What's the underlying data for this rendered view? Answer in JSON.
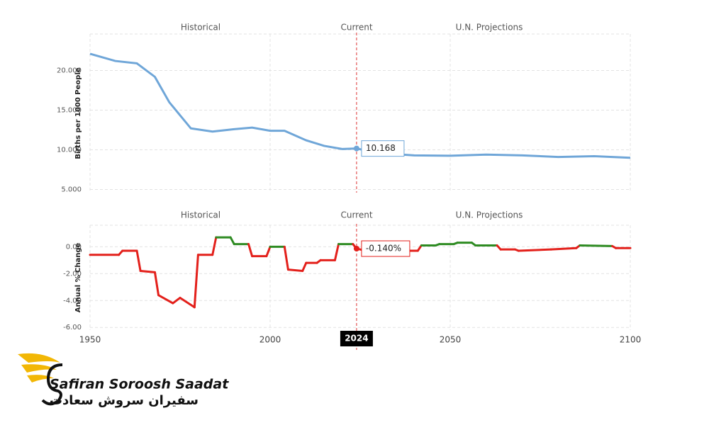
{
  "chart_data": [
    {
      "type": "line",
      "y_label": "Births per 1000 People",
      "sections": [
        "Historical",
        "Current",
        "U.N. Projections"
      ],
      "xlim": [
        1950,
        2100
      ],
      "ylim": [
        4.6,
        24.6
      ],
      "yticks": [
        {
          "value": 5,
          "label": "5.000"
        },
        {
          "value": 10,
          "label": "10.000"
        },
        {
          "value": 15,
          "label": "15.000"
        },
        {
          "value": 20,
          "label": "20.000"
        }
      ],
      "grid": true,
      "marker_x": 2024,
      "color": "#6fa6d8",
      "x": [
        1950,
        1957,
        1963,
        1968,
        1972,
        1978,
        1984,
        1990,
        1995,
        2000,
        2004,
        2010,
        2015,
        2020,
        2024,
        2030,
        2040,
        2050,
        2060,
        2070,
        2080,
        2090,
        2100
      ],
      "values": [
        22.1,
        21.2,
        20.9,
        19.2,
        16.0,
        12.7,
        12.3,
        12.6,
        12.8,
        12.4,
        12.4,
        11.2,
        10.5,
        10.1,
        10.168,
        9.6,
        9.3,
        9.25,
        9.4,
        9.3,
        9.1,
        9.2,
        9.0
      ],
      "value_labels": [
        null,
        null,
        null,
        null,
        null,
        null,
        null,
        null,
        null,
        null,
        null,
        null,
        null,
        null,
        "10.168",
        null,
        null,
        null,
        null,
        null,
        null,
        null,
        null
      ]
    },
    {
      "type": "line",
      "y_label": "Annual % Change",
      "sections": [
        "Historical",
        "Current",
        "U.N. Projections"
      ],
      "xlim": [
        1950,
        2100
      ],
      "ylim": [
        -6.2,
        1.6
      ],
      "xticks": [
        1950,
        2000,
        2050,
        2100
      ],
      "yticks": [
        {
          "value": -6,
          "label": "-6.00"
        },
        {
          "value": -4,
          "label": "-4.00"
        },
        {
          "value": -2,
          "label": "-2.00"
        },
        {
          "value": 0,
          "label": "0.00"
        }
      ],
      "grid": true,
      "marker_x": 2024,
      "positive_color": "#2e8b22",
      "negative_color": "#e3201b",
      "x": [
        1950,
        1958,
        1959,
        1963,
        1964,
        1968,
        1969,
        1973,
        1975,
        1979,
        1980,
        1984,
        1985,
        1989,
        1990,
        1994,
        1995,
        1999,
        2000,
        2004,
        2005,
        2009,
        2010,
        2013,
        2014,
        2018,
        2019,
        2023,
        2024,
        2030,
        2036,
        2037,
        2041,
        2042,
        2046,
        2047,
        2051,
        2052,
        2056,
        2057,
        2063,
        2064,
        2068,
        2069,
        2078,
        2085,
        2086,
        2095,
        2096,
        2100
      ],
      "values": [
        -0.6,
        -0.6,
        -0.3,
        -0.3,
        -1.8,
        -1.9,
        -3.6,
        -4.2,
        -3.8,
        -4.5,
        -0.6,
        -0.6,
        0.7,
        0.7,
        0.2,
        0.2,
        -0.7,
        -0.7,
        0.0,
        0.0,
        -1.7,
        -1.8,
        -1.2,
        -1.2,
        -1.0,
        -1.0,
        0.2,
        0.2,
        -0.14,
        -0.5,
        -0.5,
        -0.3,
        -0.3,
        0.1,
        0.1,
        0.2,
        0.2,
        0.3,
        0.3,
        0.1,
        0.1,
        -0.2,
        -0.2,
        -0.3,
        -0.2,
        -0.1,
        0.1,
        0.05,
        -0.1,
        -0.1
      ],
      "value_labels": [
        null,
        null,
        null,
        null,
        null,
        null,
        null,
        null,
        null,
        null,
        null,
        null,
        null,
        null,
        null,
        null,
        null,
        null,
        null,
        null,
        null,
        null,
        null,
        null,
        null,
        null,
        null,
        null,
        "-0.140%",
        null,
        null,
        null,
        null,
        null,
        null,
        null,
        null,
        null,
        null,
        null,
        null,
        null,
        null,
        null,
        null,
        null,
        null,
        null,
        null,
        null
      ]
    }
  ],
  "logo": {
    "name": "Safiran Soroosh Saadat",
    "name_fa": "سفیران سروش سعادت"
  }
}
